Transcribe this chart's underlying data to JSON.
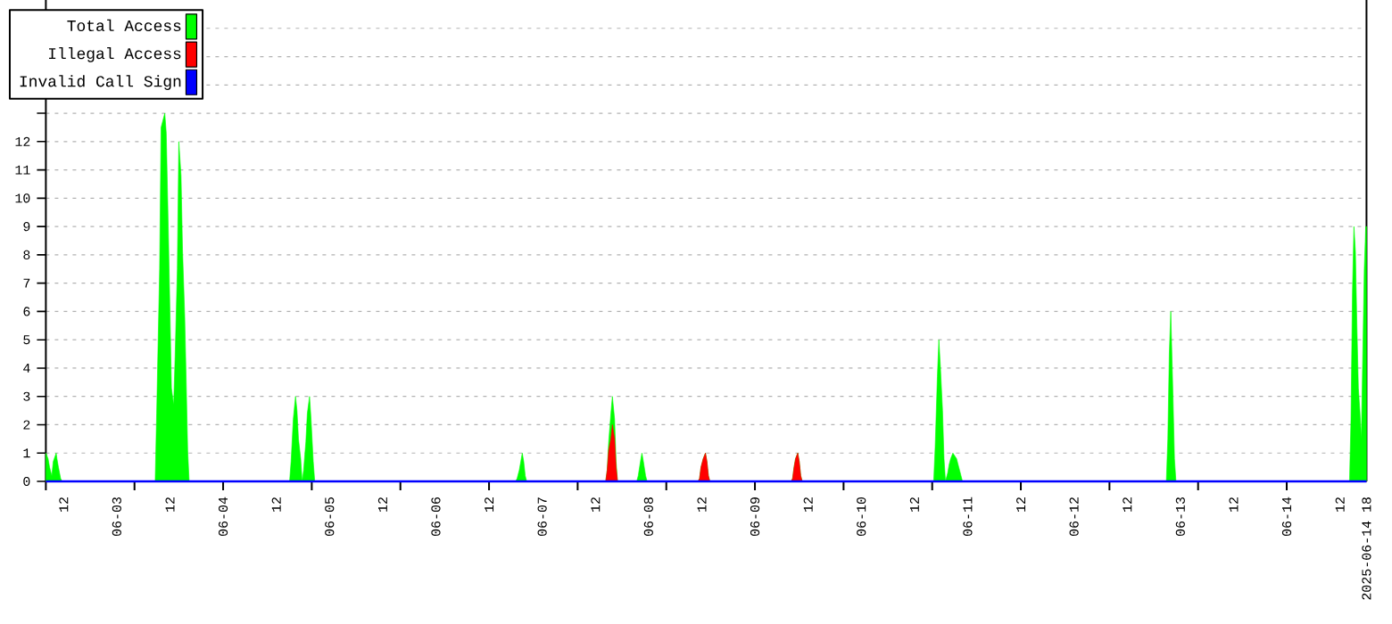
{
  "chart_data": {
    "type": "area",
    "xlim": [
      "2025-06-02T08:00",
      "2025-06-14T18:00"
    ],
    "ylim": [
      0,
      17
    ],
    "yticks": [
      0,
      1,
      2,
      3,
      4,
      5,
      6,
      7,
      8,
      9,
      10,
      11,
      12,
      {
        "value": 13,
        "label": null
      },
      {
        "value": 14,
        "label": null
      },
      {
        "value": 15,
        "label": null
      },
      {
        "value": 16,
        "label": null
      }
    ],
    "xticks": [
      {
        "value": "2025-06-02T08:00",
        "label": null
      },
      {
        "value": "2025-06-02T12:00",
        "label": "12"
      },
      {
        "value": "2025-06-03T00:00",
        "label": "06-03"
      },
      {
        "value": "2025-06-03T04:00",
        "label": null
      },
      {
        "value": "2025-06-03T12:00",
        "label": "12"
      },
      {
        "value": "2025-06-04T00:00",
        "label": "06-04"
      },
      {
        "value": "2025-06-04T00:00",
        "label": null
      },
      {
        "value": "2025-06-04T12:00",
        "label": "12"
      },
      {
        "value": "2025-06-04T20:00",
        "label": null
      },
      {
        "value": "2025-06-05T00:00",
        "label": "06-05"
      },
      {
        "value": "2025-06-05T12:00",
        "label": "12"
      },
      {
        "value": "2025-06-05T16:00",
        "label": null
      },
      {
        "value": "2025-06-06T00:00",
        "label": "06-06"
      },
      {
        "value": "2025-06-06T12:00",
        "label": "12"
      },
      {
        "value": "2025-06-06T12:00",
        "label": null
      },
      {
        "value": "2025-06-07T00:00",
        "label": "06-07"
      },
      {
        "value": "2025-06-07T08:00",
        "label": null
      },
      {
        "value": "2025-06-07T12:00",
        "label": "12"
      },
      {
        "value": "2025-06-08T00:00",
        "label": "06-08"
      },
      {
        "value": "2025-06-08T04:00",
        "label": null
      },
      {
        "value": "2025-06-08T12:00",
        "label": "12"
      },
      {
        "value": "2025-06-09T00:00",
        "label": "06-09"
      },
      {
        "value": "2025-06-09T00:00",
        "label": null
      },
      {
        "value": "2025-06-09T12:00",
        "label": "12"
      },
      {
        "value": "2025-06-09T20:00",
        "label": null
      },
      {
        "value": "2025-06-10T00:00",
        "label": "06-10"
      },
      {
        "value": "2025-06-10T12:00",
        "label": "12"
      },
      {
        "value": "2025-06-10T16:00",
        "label": null
      },
      {
        "value": "2025-06-11T00:00",
        "label": "06-11"
      },
      {
        "value": "2025-06-11T12:00",
        "label": "12"
      },
      {
        "value": "2025-06-11T12:00",
        "label": null
      },
      {
        "value": "2025-06-12T00:00",
        "label": "06-12"
      },
      {
        "value": "2025-06-12T08:00",
        "label": null
      },
      {
        "value": "2025-06-12T12:00",
        "label": "12"
      },
      {
        "value": "2025-06-13T00:00",
        "label": "06-13"
      },
      {
        "value": "2025-06-13T04:00",
        "label": null
      },
      {
        "value": "2025-06-13T12:00",
        "label": "12"
      },
      {
        "value": "2025-06-14T00:00",
        "label": "06-14"
      },
      {
        "value": "2025-06-14T00:00",
        "label": null
      },
      {
        "value": "2025-06-14T12:00",
        "label": "12"
      },
      {
        "value": "2025-06-14T18:00",
        "label": "2025-06-14 18"
      }
    ],
    "grid": "y",
    "legend": "top left",
    "series": [
      {
        "name": "Total Access",
        "color": "#00ff00",
        "x": [
          "2025-06-02T08:00",
          "2025-06-02T08:30",
          "2025-06-02T08:50",
          "2025-06-02T09:20",
          "2025-06-02T09:40",
          "2025-06-02T10:20",
          "2025-06-02T10:30",
          "2025-06-02T10:50",
          "2025-06-02T11:20",
          "2025-06-02T11:40",
          "2025-06-03T08:40",
          "2025-06-03T09:00",
          "2025-06-03T09:40",
          "2025-06-03T10:00",
          "2025-06-03T10:50",
          "2025-06-03T11:10",
          "2025-06-03T11:40",
          "2025-06-03T12:00",
          "2025-06-03T12:20",
          "2025-06-03T12:50",
          "2025-06-03T13:10",
          "2025-06-03T13:40",
          "2025-06-03T14:00",
          "2025-06-03T14:30",
          "2025-06-03T14:50",
          "2025-06-03T15:20",
          "2025-06-03T15:40",
          "2025-06-03T16:00",
          "2025-06-03T16:20",
          "2025-06-04T15:00",
          "2025-06-04T15:20",
          "2025-06-04T15:50",
          "2025-06-04T16:20",
          "2025-06-04T16:40",
          "2025-06-04T17:00",
          "2025-06-04T17:30",
          "2025-06-04T17:50",
          "2025-06-04T18:10",
          "2025-06-04T18:40",
          "2025-06-04T19:00",
          "2025-06-04T19:30",
          "2025-06-04T19:50",
          "2025-06-04T20:20",
          "2025-06-04T20:40",
          "2025-06-06T18:00",
          "2025-06-06T18:20",
          "2025-06-06T18:50",
          "2025-06-06T19:10",
          "2025-06-06T19:30",
          "2025-06-06T19:50",
          "2025-06-06T20:10",
          "2025-06-06T20:30",
          "2025-06-07T14:20",
          "2025-06-07T14:40",
          "2025-06-07T15:00",
          "2025-06-07T15:30",
          "2025-06-07T15:50",
          "2025-06-07T16:20",
          "2025-06-07T16:40",
          "2025-06-07T17:00",
          "2025-06-07T21:20",
          "2025-06-07T21:40",
          "2025-06-07T22:10",
          "2025-06-07T22:30",
          "2025-06-07T22:50",
          "2025-06-07T23:20",
          "2025-06-07T23:40",
          "2025-06-08T11:10",
          "2025-06-08T11:30",
          "2025-06-08T11:50",
          "2025-06-08T12:20",
          "2025-06-08T12:50",
          "2025-06-08T13:10",
          "2025-06-08T13:30",
          "2025-06-08T13:50",
          "2025-06-09T08:10",
          "2025-06-09T08:30",
          "2025-06-09T08:50",
          "2025-06-09T09:10",
          "2025-06-09T09:40",
          "2025-06-09T10:00",
          "2025-06-09T10:20",
          "2025-06-09T10:40",
          "2025-06-10T16:20",
          "2025-06-10T16:40",
          "2025-06-10T17:10",
          "2025-06-10T17:30",
          "2025-06-10T17:50",
          "2025-06-10T18:20",
          "2025-06-10T18:40",
          "2025-06-10T19:00",
          "2025-06-10T19:30",
          "2025-06-10T19:50",
          "2025-06-10T20:10",
          "2025-06-10T20:40",
          "2025-06-10T21:30",
          "2025-06-10T22:00",
          "2025-06-10T22:30",
          "2025-06-10T22:50",
          "2025-06-12T20:50",
          "2025-06-12T21:10",
          "2025-06-12T21:30",
          "2025-06-12T21:50",
          "2025-06-12T22:20",
          "2025-06-12T22:40",
          "2025-06-12T23:00",
          "2025-06-14T14:10",
          "2025-06-14T14:30",
          "2025-06-14T14:50",
          "2025-06-14T15:10",
          "2025-06-14T15:30",
          "2025-06-14T15:50",
          "2025-06-14T16:10",
          "2025-06-14T16:30",
          "2025-06-14T16:50",
          "2025-06-14T17:10",
          "2025-06-14T17:30",
          "2025-06-14T17:50",
          "2025-06-14T18:00"
        ],
        "values": [
          1.0,
          0.8,
          0.5,
          0.2,
          0.7,
          1.0,
          0.8,
          0.5,
          0.1,
          0,
          0,
          2.4,
          7.5,
          12.5,
          13,
          12.3,
          8.6,
          6,
          3.3,
          2.7,
          4.4,
          7.5,
          12,
          10.8,
          8.2,
          5.8,
          3.5,
          1.1,
          0,
          0,
          0.7,
          2.2,
          3.0,
          2.5,
          1.5,
          0.8,
          0,
          0.4,
          1.4,
          2.4,
          3.0,
          2.2,
          0.7,
          0,
          0,
          0.1,
          0.4,
          0.7,
          1.0,
          0.7,
          0.2,
          0,
          0,
          0.4,
          1.4,
          2.4,
          3.0,
          2.2,
          0.7,
          0,
          0,
          0.2,
          0.7,
          1.0,
          0.7,
          0.2,
          0,
          0,
          0.1,
          0.5,
          0.8,
          1.0,
          0.7,
          0.2,
          0,
          0,
          0.1,
          0.5,
          0.8,
          1.0,
          0.7,
          0.2,
          0,
          0,
          1.2,
          3.7,
          5.0,
          4.1,
          2.5,
          0.8,
          0,
          0.3,
          0.6,
          0.8,
          1.0,
          0.8,
          0.5,
          0.2,
          0,
          0,
          1.5,
          4.5,
          6.0,
          3.0,
          0.8,
          0,
          0,
          2.2,
          6.7,
          9.0,
          8.1,
          5.5,
          3.3,
          2.5,
          1.5,
          4.5,
          7.5,
          9.0,
          9.0
        ]
      },
      {
        "name": "Illegal Access",
        "color": "#ff0000",
        "x": [
          "2025-06-02T08:00",
          "2025-06-07T14:20",
          "2025-06-07T14:40",
          "2025-06-07T15:00",
          "2025-06-07T15:30",
          "2025-06-07T15:50",
          "2025-06-07T16:20",
          "2025-06-07T16:40",
          "2025-06-07T17:00",
          "2025-06-08T11:10",
          "2025-06-08T11:30",
          "2025-06-08T11:50",
          "2025-06-08T12:20",
          "2025-06-08T12:50",
          "2025-06-08T13:10",
          "2025-06-08T13:30",
          "2025-06-08T13:50",
          "2025-06-09T08:10",
          "2025-06-09T08:30",
          "2025-06-09T08:50",
          "2025-06-09T09:10",
          "2025-06-09T09:40",
          "2025-06-09T10:00",
          "2025-06-09T10:20",
          "2025-06-09T10:40",
          "2025-06-14T18:00"
        ],
        "values": [
          0,
          0,
          0.4,
          1.1,
          1.5,
          2.0,
          1.5,
          0.5,
          0,
          0,
          0.1,
          0.5,
          0.8,
          1.0,
          0.7,
          0.2,
          0,
          0,
          0.1,
          0.5,
          0.8,
          1.0,
          0.7,
          0.2,
          0,
          0
        ]
      },
      {
        "name": "Invalid Call Sign",
        "color": "#0000ff",
        "type": "line",
        "x": [
          "2025-06-02T08:00",
          "2025-06-14T18:00"
        ],
        "values": [
          0,
          0
        ]
      }
    ]
  }
}
